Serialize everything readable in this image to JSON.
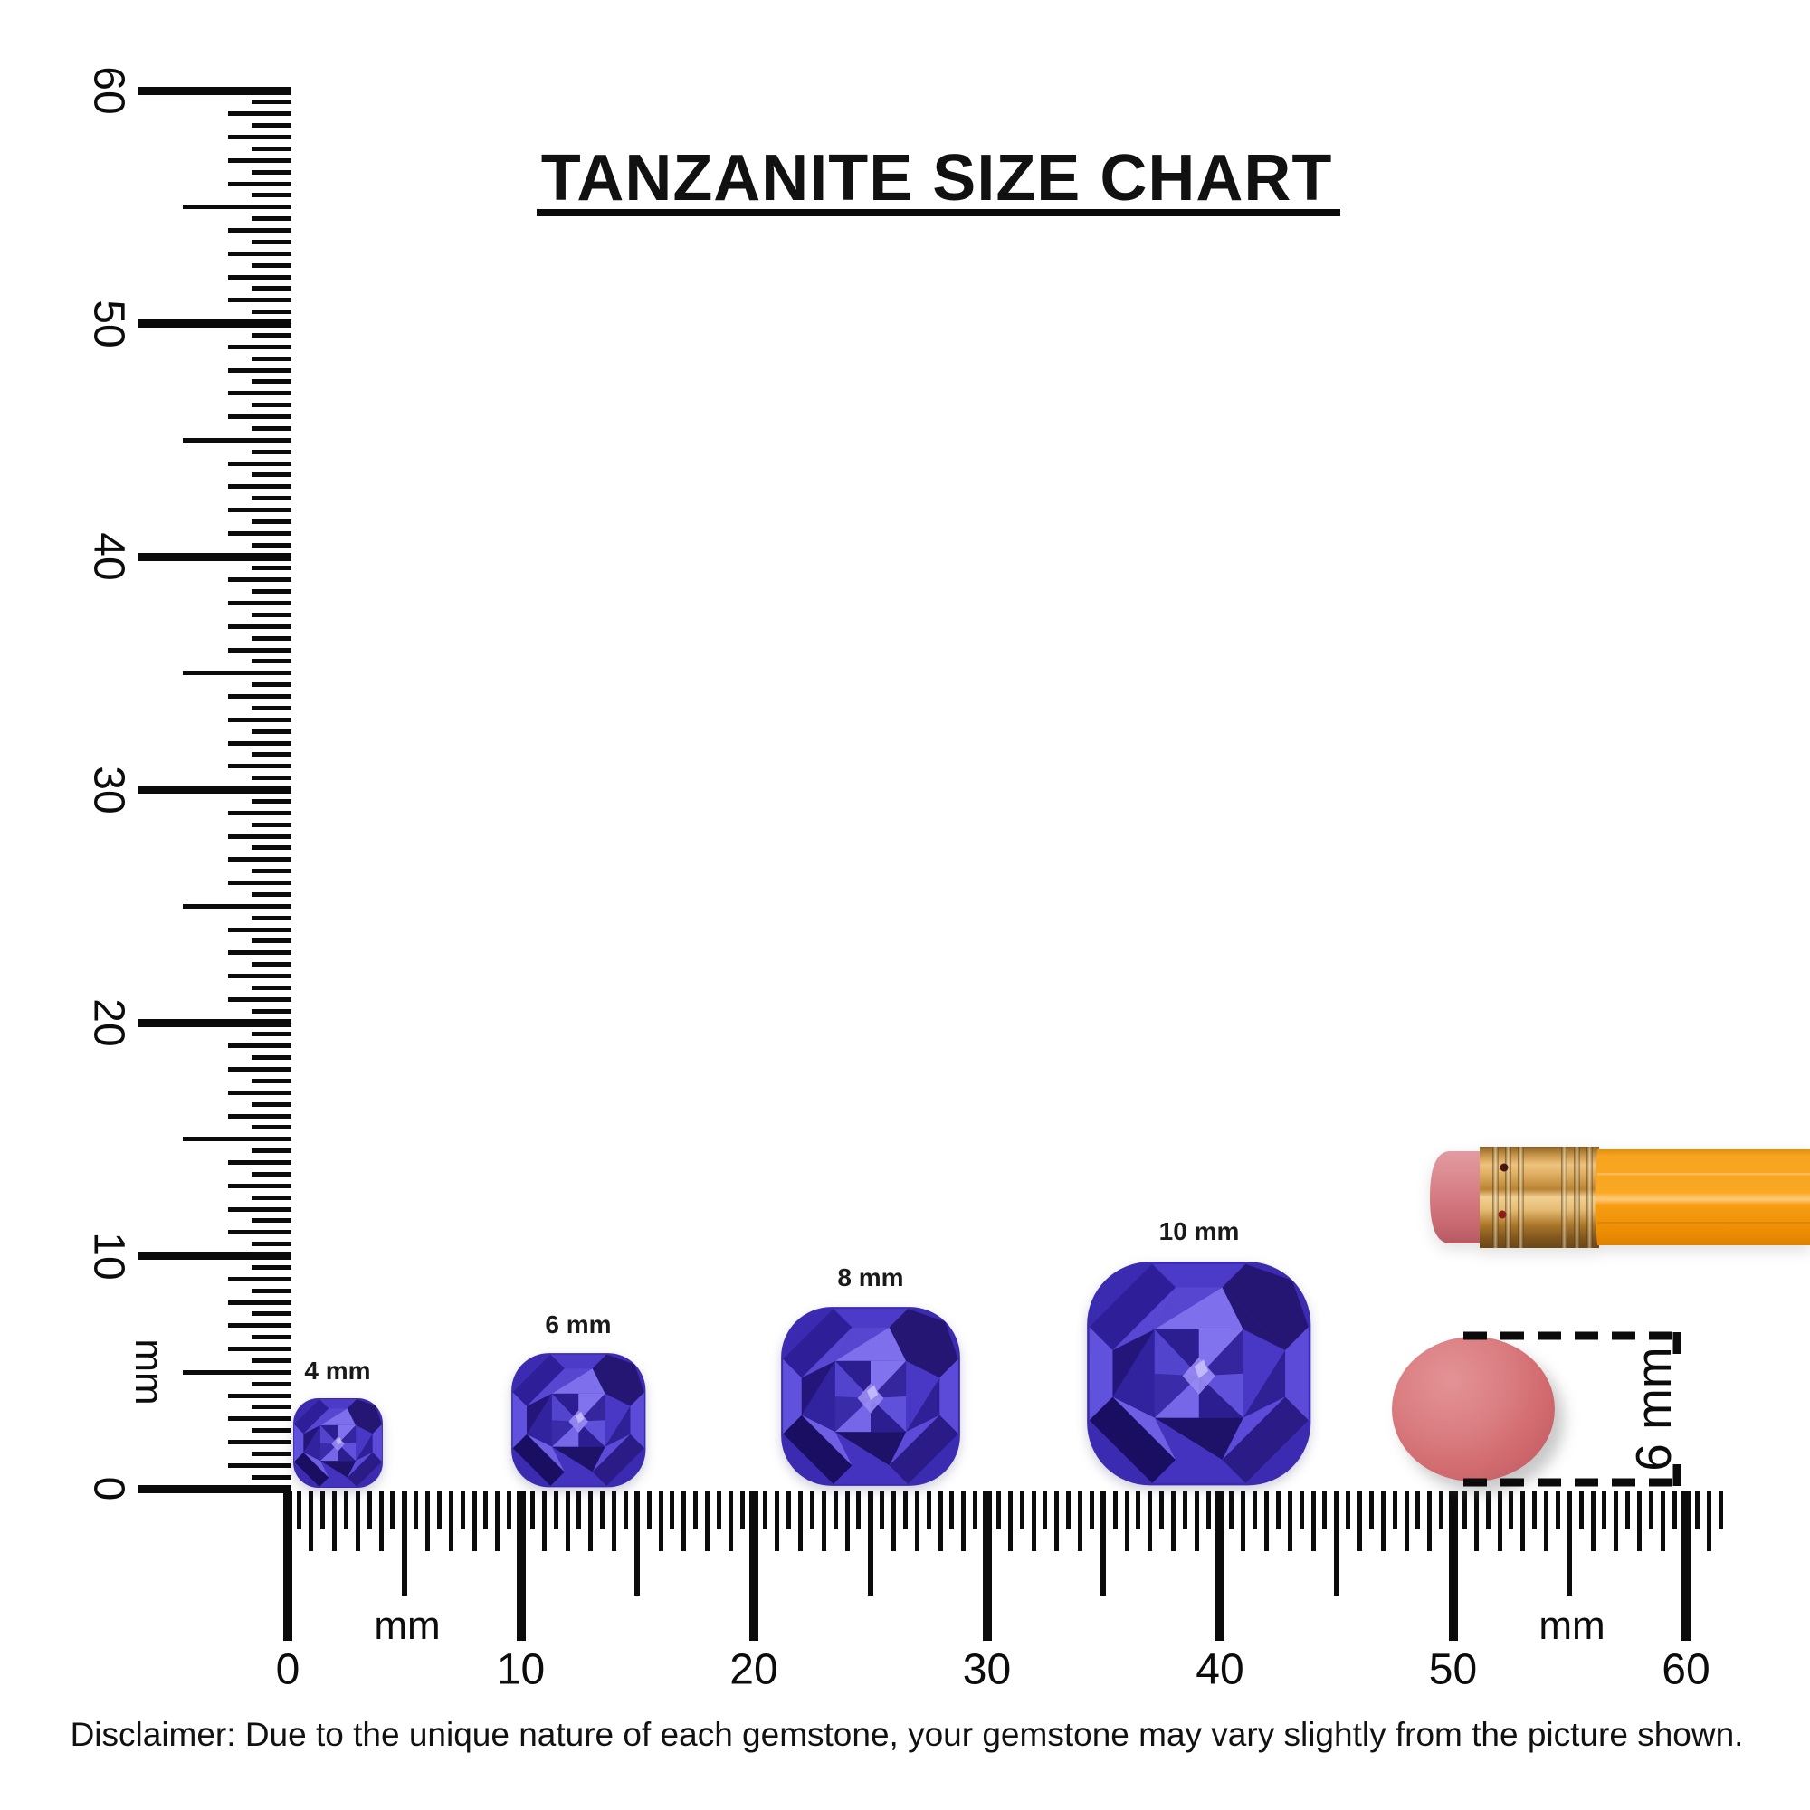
{
  "title": {
    "text": "TANZANITE SIZE CHART"
  },
  "rulers": {
    "unit_label": "mm",
    "numbers": [
      "0",
      "10",
      "20",
      "30",
      "40",
      "50",
      "60"
    ],
    "range_mm": [
      0,
      60
    ]
  },
  "gems": [
    {
      "label": "4 mm",
      "size_mm": 4
    },
    {
      "label": "6 mm",
      "size_mm": 6
    },
    {
      "label": "8 mm",
      "size_mm": 8
    },
    {
      "label": "10 mm",
      "size_mm": 10
    }
  ],
  "eraser_measurement": {
    "label": "6 mm"
  },
  "disclaimer": "Disclaimer: Due to the unique nature of each gemstone, your gemstone may vary slightly from the picture shown.",
  "colors": {
    "ink": "#0b0b0b",
    "gem_base": "#3a2bb0",
    "gem_light": "#8476ee",
    "gem_dark": "#1b0f6b",
    "pencil_body": "#f9a824",
    "pencil_ferrule": "#d9a759",
    "pencil_eraser": "#d4777f",
    "round_eraser": "#d26c70"
  }
}
